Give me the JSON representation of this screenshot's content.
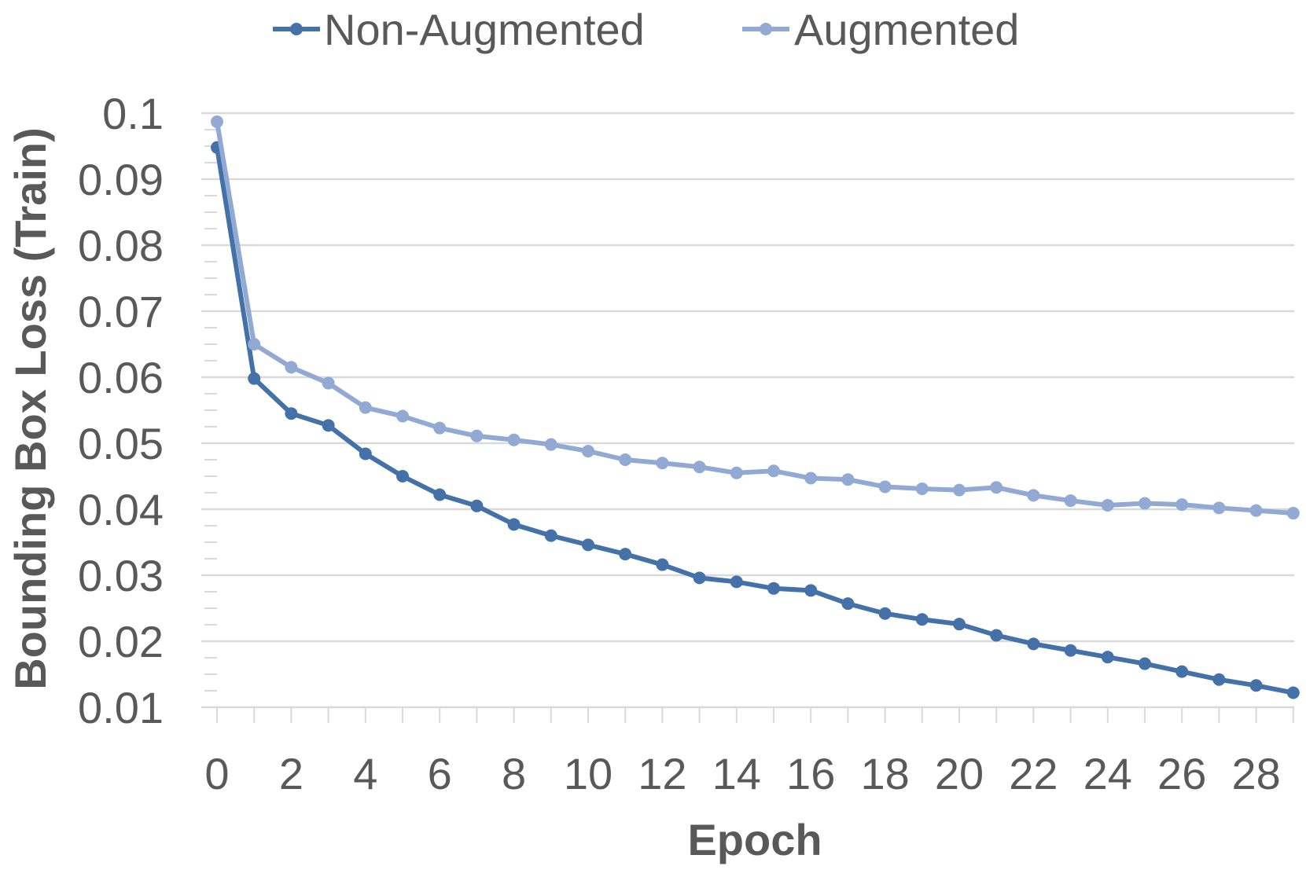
{
  "chart_data": {
    "type": "line",
    "title": "",
    "xlabel": "Epoch",
    "ylabel": "Bounding Box Loss (Train)",
    "x": [
      0,
      1,
      2,
      3,
      4,
      5,
      6,
      7,
      8,
      9,
      10,
      11,
      12,
      13,
      14,
      15,
      16,
      17,
      18,
      19,
      20,
      21,
      22,
      23,
      24,
      25,
      26,
      27,
      28,
      29
    ],
    "xticks": [
      0,
      2,
      4,
      6,
      8,
      10,
      12,
      14,
      16,
      18,
      20,
      22,
      24,
      26,
      28
    ],
    "yticks": [
      0.01,
      0.02,
      0.03,
      0.04,
      0.05,
      0.06,
      0.07,
      0.08,
      0.09,
      0.1
    ],
    "ytick_labels": [
      "0.01",
      "0.02",
      "0.03",
      "0.04",
      "0.05",
      "0.06",
      "0.07",
      "0.08",
      "0.09",
      "0.1"
    ],
    "xlim": [
      0,
      29
    ],
    "ylim": [
      0.01,
      0.1
    ],
    "grid": true,
    "legend_position": "top",
    "series": [
      {
        "name": "Non-Augmented",
        "color": "#4472a8",
        "values": [
          0.0948,
          0.0598,
          0.0545,
          0.0527,
          0.0484,
          0.045,
          0.0422,
          0.0405,
          0.0377,
          0.036,
          0.0346,
          0.0332,
          0.0316,
          0.0296,
          0.029,
          0.028,
          0.0277,
          0.0257,
          0.0242,
          0.0233,
          0.0226,
          0.0209,
          0.0196,
          0.0186,
          0.0176,
          0.0166,
          0.0154,
          0.0142,
          0.0133,
          0.0122
        ]
      },
      {
        "name": "Augmented",
        "color": "#92a9d3",
        "values": [
          0.0987,
          0.065,
          0.0615,
          0.0591,
          0.0554,
          0.0541,
          0.0523,
          0.0511,
          0.0505,
          0.0498,
          0.0488,
          0.0475,
          0.047,
          0.0464,
          0.0455,
          0.0458,
          0.0447,
          0.0445,
          0.0434,
          0.0431,
          0.0429,
          0.0433,
          0.0421,
          0.0413,
          0.0406,
          0.0409,
          0.0407,
          0.0402,
          0.0398,
          0.0394
        ]
      }
    ]
  }
}
